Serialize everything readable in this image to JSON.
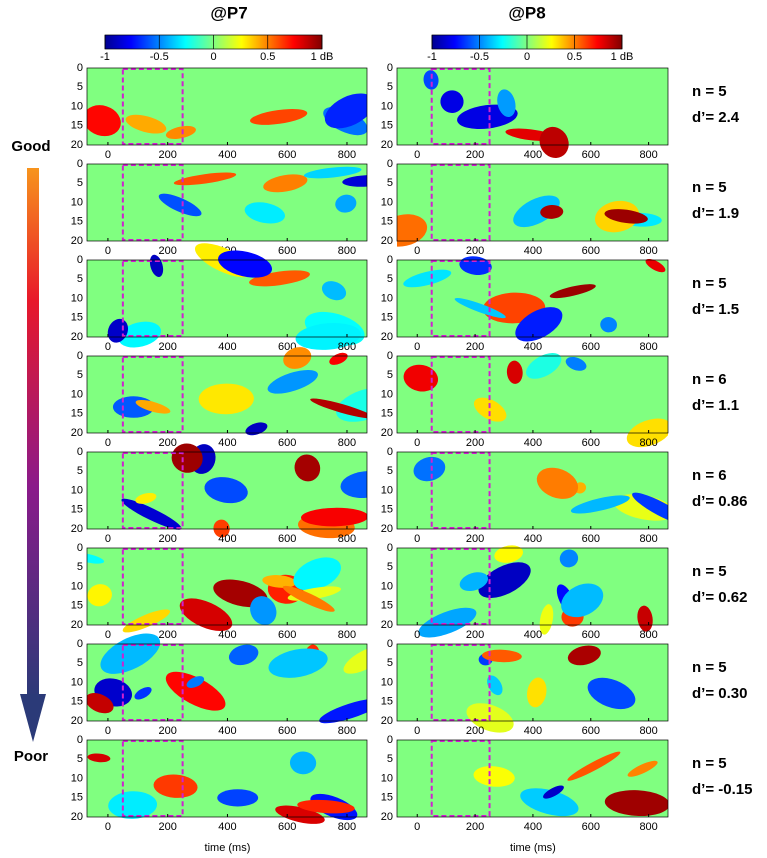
{
  "columns": [
    {
      "title": "@P7"
    },
    {
      "title": "@P8"
    }
  ],
  "colorbar": {
    "ticks": [
      -1,
      -0.5,
      0,
      0.5,
      {
        "value": 1,
        "label": "1 dB"
      }
    ]
  },
  "xticks": [
    0,
    200,
    400,
    600,
    800
  ],
  "yticks": [
    0,
    5,
    10,
    15,
    20
  ],
  "xlabel": "time (ms)",
  "arrow": {
    "top": "Good",
    "bottom": "Poor"
  },
  "rows": [
    {
      "n": "n = 5",
      "d": "d’= 2.4"
    },
    {
      "n": "n = 5",
      "d": "d’= 1.9"
    },
    {
      "n": "n = 5",
      "d": "d’= 1.5"
    },
    {
      "n": "n = 6",
      "d": "d’= 1.1"
    },
    {
      "n": "n = 6",
      "d": "d’= 0.86"
    },
    {
      "n": "n = 5",
      "d": "d’= 0.62"
    },
    {
      "n": "n = 5",
      "d": "d’= 0.30"
    },
    {
      "n": "n = 5",
      "d": "d’= -0.15"
    }
  ]
}
